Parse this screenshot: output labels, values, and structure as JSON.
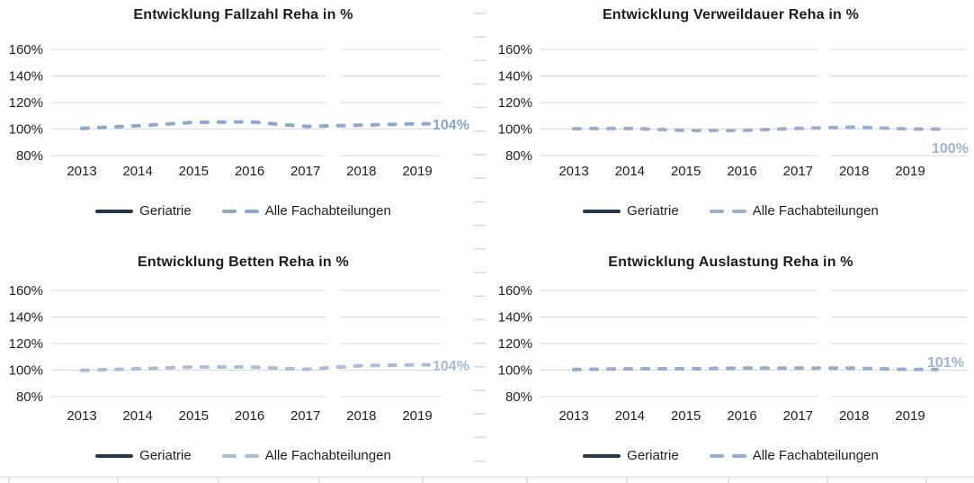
{
  "page": {
    "background": "#ffffff"
  },
  "colors": {
    "gridline": "#d9d9d9",
    "axis_text": "#1f1f1f",
    "title_text": "#1c1c1c",
    "geriatrie_line": "#24394e",
    "artifact_gray": "#dadada"
  },
  "chart_data": [
    {
      "type": "line",
      "title": "Entwicklung Fallzahl Reha in %",
      "categories": [
        "2013",
        "2014",
        "2015",
        "2016",
        "2017",
        "2018",
        "2019"
      ],
      "y_ticks": [
        "160%",
        "140%",
        "120%",
        "100%",
        "80%"
      ],
      "ylim": [
        80,
        160
      ],
      "grid": true,
      "legend_position": "bottom",
      "series": [
        {
          "name": "Geriatrie",
          "color": "#24394e",
          "style": "solid",
          "values": []
        },
        {
          "name": "Alle Fachabteilungen",
          "color": "#8ca8cb",
          "style": "dashed",
          "values": [
            100.5,
            102.5,
            105,
            105.5,
            102,
            103,
            104
          ]
        }
      ],
      "end_label": {
        "text": "104%",
        "color": "#8aa5c8"
      }
    },
    {
      "type": "line",
      "title": "Entwicklung Verweildauer Reha in %",
      "categories": [
        "2013",
        "2014",
        "2015",
        "2016",
        "2017",
        "2018",
        "2019"
      ],
      "y_ticks": [
        "160%",
        "140%",
        "120%",
        "100%",
        "80%"
      ],
      "ylim": [
        80,
        160
      ],
      "grid": true,
      "legend_position": "bottom",
      "series": [
        {
          "name": "Geriatrie",
          "color": "#24394e",
          "style": "solid",
          "values": []
        },
        {
          "name": "Alle Fachabteilungen",
          "color": "#97b0d0",
          "style": "dashed",
          "values": [
            100.3,
            100.5,
            99,
            99,
            100.5,
            101.5,
            100
          ]
        }
      ],
      "end_label": {
        "text": "100%",
        "color": "#9db4d3"
      }
    },
    {
      "type": "line",
      "title": "Entwicklung Betten Reha in %",
      "categories": [
        "2013",
        "2014",
        "2015",
        "2016",
        "2017",
        "2018",
        "2019"
      ],
      "y_ticks": [
        "160%",
        "140%",
        "120%",
        "100%",
        "80%"
      ],
      "ylim": [
        80,
        160
      ],
      "grid": true,
      "legend_position": "bottom",
      "series": [
        {
          "name": "Geriatrie",
          "color": "#24394e",
          "style": "solid",
          "values": []
        },
        {
          "name": "Alle Fachabteilungen",
          "color": "#a9bdda",
          "style": "dashed",
          "values": [
            99.8,
            101,
            102.3,
            102.4,
            100.6,
            103.3,
            104
          ]
        }
      ],
      "end_label": {
        "text": "104%",
        "color": "#a5bbd8"
      }
    },
    {
      "type": "line",
      "title": "Entwicklung Auslastung Reha in %",
      "categories": [
        "2013",
        "2014",
        "2015",
        "2016",
        "2017",
        "2018",
        "2019"
      ],
      "y_ticks": [
        "160%",
        "140%",
        "120%",
        "100%",
        "80%"
      ],
      "ylim": [
        80,
        160
      ],
      "grid": true,
      "legend_position": "bottom",
      "series": [
        {
          "name": "Geriatrie",
          "color": "#24394e",
          "style": "solid",
          "values": []
        },
        {
          "name": "Alle Fachabteilungen",
          "color": "#93aed0",
          "style": "dashed",
          "values": [
            100.5,
            101,
            101,
            101.5,
            101.5,
            101.5,
            100.5
          ]
        }
      ],
      "end_label": {
        "text": "101%",
        "color": "#9db4d3"
      }
    }
  ]
}
